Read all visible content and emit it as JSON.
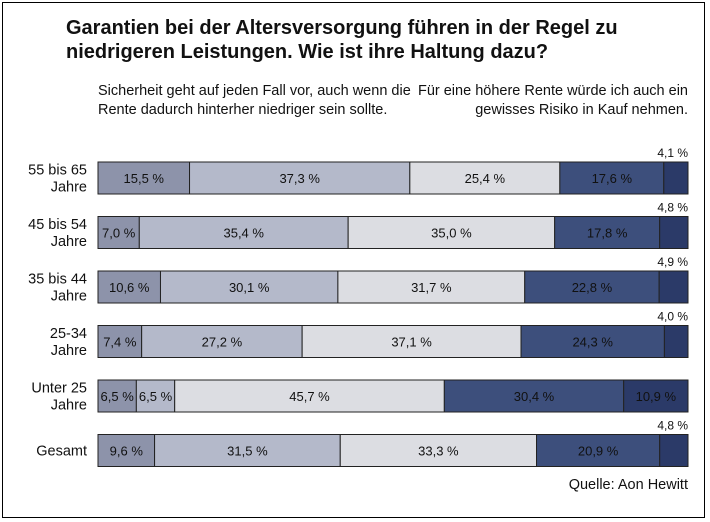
{
  "title": "Garantien bei der Altersversorgung führen in der Regel zu niedrigeren Leistungen. Wie ist ihre Haltung dazu?",
  "note_left": "Sicherheit geht auf jeden Fall vor, auch wenn die Rente dadurch hinterher niedriger sein sollte.",
  "note_right": "Für eine höhere Rente würde ich auch ein gewisses Risiko in Kauf nehmen.",
  "source": "Quelle: Aon Hewitt",
  "colors": [
    "#8d93aa",
    "#b4b9ca",
    "#dcdde2",
    "#3d4f7c",
    "#2b3a68"
  ],
  "chart_data": {
    "type": "bar",
    "orientation": "horizontal",
    "stacked": true,
    "unit": "%",
    "categories": [
      [
        "55 bis 65",
        "Jahre"
      ],
      [
        "45 bis 54",
        "Jahre"
      ],
      [
        "35 bis 44",
        "Jahre"
      ],
      [
        "25-34",
        "Jahre"
      ],
      [
        "Unter 25",
        "Jahre"
      ],
      [
        "Gesamt"
      ]
    ],
    "values": [
      [
        15.5,
        37.3,
        25.4,
        17.6,
        4.1
      ],
      [
        7.0,
        35.4,
        35.0,
        17.8,
        4.8
      ],
      [
        10.6,
        30.1,
        31.7,
        22.8,
        4.9
      ],
      [
        7.4,
        27.2,
        37.1,
        24.3,
        4.0
      ],
      [
        6.5,
        6.5,
        45.7,
        30.4,
        10.9
      ],
      [
        9.6,
        31.5,
        33.3,
        20.9,
        4.8
      ]
    ],
    "labels": [
      [
        "15,5 %",
        "37,3 %",
        "25,4 %",
        "17,6 %",
        "4,1 %"
      ],
      [
        "7,0 %",
        "35,4 %",
        "35,0 %",
        "17,8 %",
        "4,8 %"
      ],
      [
        "10,6 %",
        "30,1 %",
        "31,7 %",
        "22,8 %",
        "4,9 %"
      ],
      [
        "7,4 %",
        "27,2 %",
        "37,1 %",
        "24,3 %",
        "4,0 %"
      ],
      [
        "6,5 %",
        "6,5 %",
        "45,7 %",
        "30,4 %",
        "10,9 %"
      ],
      [
        "9,6 %",
        "31,5 %",
        "33,3 %",
        "20,9 %",
        "4,8 %"
      ]
    ],
    "outside_label": [
      true,
      true,
      true,
      true,
      false,
      true
    ],
    "xlim": [
      0,
      100
    ],
    "grid": false,
    "legend": "none"
  }
}
